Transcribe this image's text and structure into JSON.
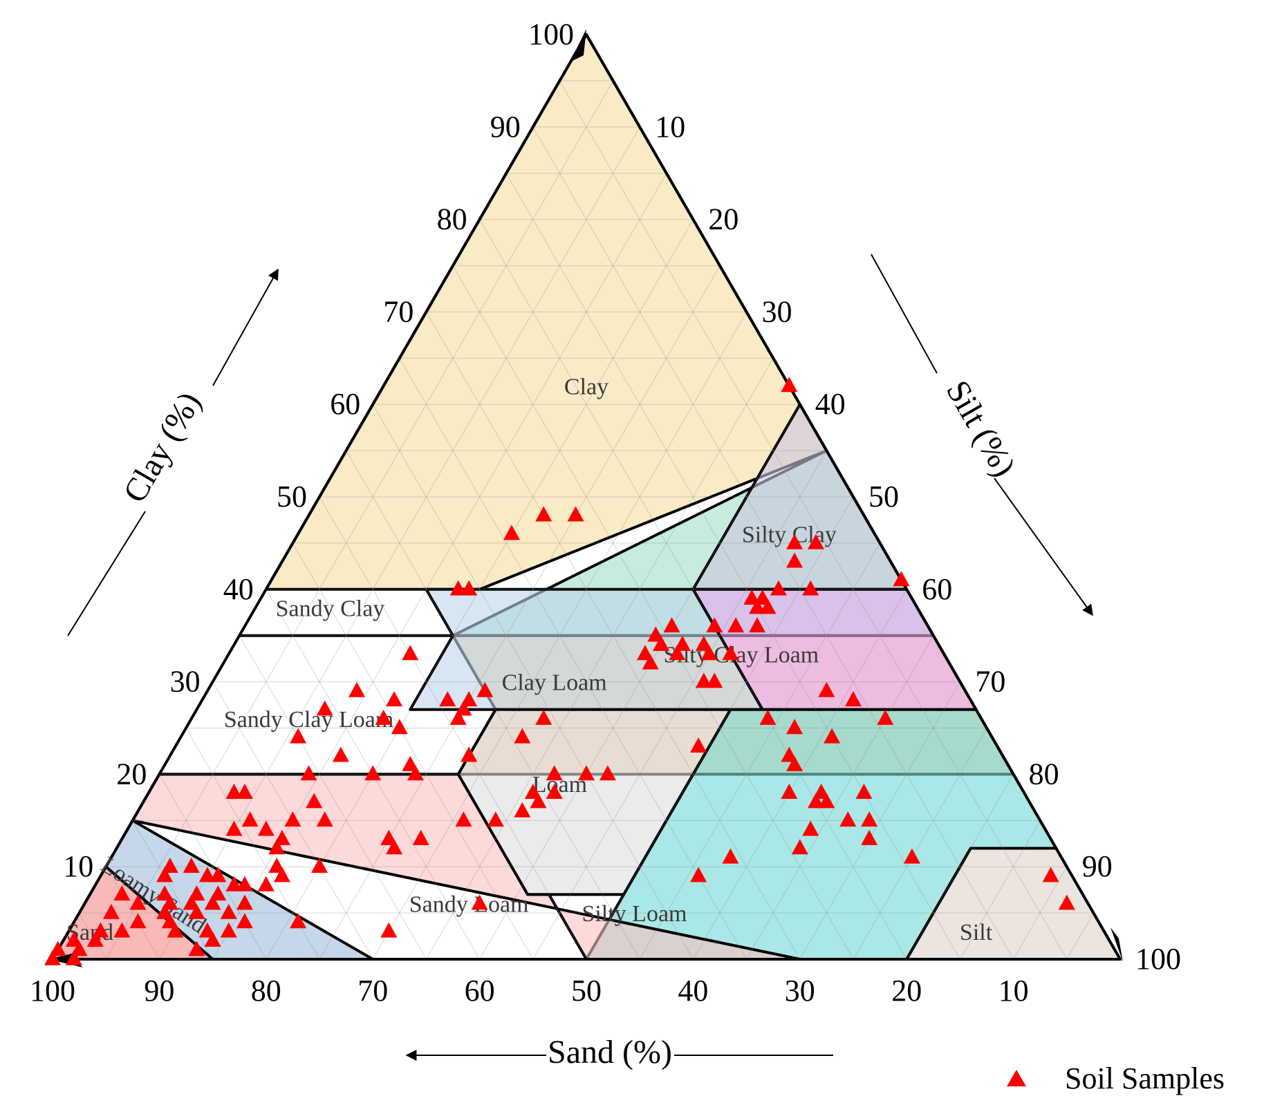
{
  "chart_data": {
    "type": "ternary-scatter",
    "axes": {
      "clay": {
        "label": "Clay (%)",
        "ticks": [
          10,
          20,
          30,
          40,
          50,
          60,
          70,
          80,
          90,
          100
        ]
      },
      "silt": {
        "label": "Silt (%)",
        "ticks": [
          10,
          20,
          30,
          40,
          50,
          60,
          70,
          80,
          90,
          100
        ]
      },
      "sand": {
        "label": "Sand (%)",
        "ticks": [
          100,
          90,
          80,
          70,
          60,
          50,
          40,
          30,
          20,
          10
        ]
      }
    },
    "grid": true,
    "regions": [
      {
        "name": "Clay",
        "label": "Clay",
        "color": "#f7dca0",
        "vertices": [
          [
            40,
            15
          ],
          [
            40,
            20
          ],
          [
            55,
            45
          ],
          [
            100,
            0
          ],
          [
            60,
            0
          ],
          [
            40,
            0
          ]
        ]
      },
      {
        "name": "Sandy Clay",
        "label": "Sandy Clay",
        "color": "#9fe0c6",
        "vertices": [
          [
            35,
            0
          ],
          [
            35,
            20
          ],
          [
            55,
            45
          ],
          [
            35,
            65
          ]
        ]
      },
      {
        "name": "Silty Clay",
        "label": "Silty Clay",
        "color": "#c9c6e0",
        "vertices": [
          [
            40,
            40
          ],
          [
            40,
            60
          ],
          [
            60,
            40
          ]
        ]
      },
      {
        "name": "Sandy Clay Loam",
        "label": "Sandy Clay Loam",
        "color": "#f2c396",
        "vertices": [
          [
            20,
            0
          ],
          [
            20,
            28
          ],
          [
            27,
            28
          ],
          [
            35,
            20
          ],
          [
            35,
            65
          ],
          [
            20,
            80
          ]
        ]
      },
      {
        "name": "Clay Loam",
        "label": "Clay Loam",
        "color": "#bcd5ea",
        "vertices": [
          [
            27,
            20
          ],
          [
            27,
            53
          ],
          [
            40,
            40
          ],
          [
            40,
            15
          ],
          [
            35,
            20
          ]
        ]
      },
      {
        "name": "Silty Clay Loam",
        "label": "Silty Clay Loam",
        "color": "#e6a6f4",
        "vertices": [
          [
            27,
            53
          ],
          [
            27,
            73
          ],
          [
            40,
            60
          ],
          [
            40,
            40
          ]
        ]
      },
      {
        "name": "Loam",
        "label": "Loam",
        "color": "#dddddd",
        "vertices": [
          [
            7,
            43
          ],
          [
            7,
            50
          ],
          [
            27,
            50
          ],
          [
            27,
            28
          ],
          [
            20,
            28
          ],
          [
            7,
            41
          ]
        ]
      },
      {
        "name": "Silty Loam",
        "label": "Silty Loam",
        "color": "#6fd8d6",
        "vertices": [
          [
            0,
            50
          ],
          [
            0,
            80
          ],
          [
            12,
            80
          ],
          [
            12,
            88
          ],
          [
            27,
            73
          ],
          [
            27,
            50
          ],
          [
            7,
            50
          ]
        ]
      },
      {
        "name": "Silt",
        "label": "Silt",
        "color": "#e0d2ca",
        "vertices": [
          [
            0,
            80
          ],
          [
            0,
            100
          ],
          [
            12,
            88
          ],
          [
            12,
            80
          ]
        ]
      },
      {
        "name": "Sandy Loam",
        "label": "Sandy Loam",
        "color": "#fbbfbf",
        "vertices": [
          [
            0,
            30
          ],
          [
            0,
            50
          ],
          [
            7,
            43
          ],
          [
            7,
            41
          ],
          [
            20,
            28
          ],
          [
            20,
            0
          ],
          [
            15,
            0
          ],
          [
            0,
            70
          ]
        ]
      },
      {
        "name": "Loamy Sand",
        "label": "Loamy Sand",
        "color": "#9fbcd8",
        "vertices": [
          [
            0,
            15
          ],
          [
            0,
            30
          ],
          [
            15,
            0
          ],
          [
            10,
            0
          ]
        ]
      },
      {
        "name": "Sand",
        "label": "Sand",
        "color": "#f58a8a",
        "vertices": [
          [
            0,
            0
          ],
          [
            0,
            15
          ],
          [
            10,
            0
          ]
        ]
      }
    ],
    "series": [
      {
        "name": "Soil Samples",
        "marker": "triangle",
        "color": "#ff0000",
        "points_clay_silt": [
          [
            62,
            38
          ],
          [
            48,
            22
          ],
          [
            48,
            25
          ],
          [
            46,
            20
          ],
          [
            45,
            47
          ],
          [
            45,
            49
          ],
          [
            43,
            48
          ],
          [
            40,
            48
          ],
          [
            40,
            51
          ],
          [
            41,
            59
          ],
          [
            39,
            46
          ],
          [
            39,
            47
          ],
          [
            38,
            47
          ],
          [
            38,
            48
          ],
          [
            40,
            18
          ],
          [
            40,
            19
          ],
          [
            36,
            40
          ],
          [
            34,
            42
          ],
          [
            35,
            39
          ],
          [
            34,
            40
          ],
          [
            33,
            42
          ],
          [
            35,
            39
          ],
          [
            36,
            44
          ],
          [
            34,
            44
          ],
          [
            33,
            45
          ],
          [
            32,
            40
          ],
          [
            33,
            39
          ],
          [
            34,
            40
          ],
          [
            36,
            46
          ],
          [
            33,
            47
          ],
          [
            36,
            48
          ],
          [
            30,
            46
          ],
          [
            30,
            47
          ],
          [
            29,
            58
          ],
          [
            26,
            65
          ],
          [
            28,
            61
          ],
          [
            33,
            17
          ],
          [
            29,
            14
          ],
          [
            28,
            18
          ],
          [
            28,
            23
          ],
          [
            27,
            12
          ],
          [
            26,
            18
          ],
          [
            25,
            20
          ],
          [
            28,
            25
          ],
          [
            29,
            26
          ],
          [
            26,
            25
          ],
          [
            27,
            25
          ],
          [
            24,
            11
          ],
          [
            22,
            16
          ],
          [
            21,
            23
          ],
          [
            22,
            28
          ],
          [
            26,
            33
          ],
          [
            24,
            32
          ],
          [
            20,
            37
          ],
          [
            20,
            40
          ],
          [
            20,
            42
          ],
          [
            18,
            36
          ],
          [
            17,
            37
          ],
          [
            18,
            38
          ],
          [
            23,
            49
          ],
          [
            26,
            54
          ],
          [
            25,
            57
          ],
          [
            24,
            61
          ],
          [
            22,
            58
          ],
          [
            21,
            59
          ],
          [
            18,
            60
          ],
          [
            18,
            63
          ],
          [
            18,
            67
          ],
          [
            17,
            63
          ],
          [
            17,
            64
          ],
          [
            14,
            64
          ],
          [
            15,
            67
          ],
          [
            15,
            69
          ],
          [
            20,
            14
          ],
          [
            18,
            8
          ],
          [
            18,
            9
          ],
          [
            15,
            11
          ],
          [
            14,
            10
          ],
          [
            14,
            13
          ],
          [
            13,
            15
          ],
          [
            17,
            16
          ],
          [
            20,
            20
          ],
          [
            20,
            24
          ],
          [
            22,
            28
          ],
          [
            15,
            34
          ],
          [
            16,
            36
          ],
          [
            15,
            31
          ],
          [
            15,
            15
          ],
          [
            15,
            18
          ],
          [
            13,
            25
          ],
          [
            13,
            28
          ],
          [
            12,
            15
          ],
          [
            10,
            20
          ],
          [
            10,
            8
          ],
          [
            12,
            26
          ],
          [
            13,
            25
          ],
          [
            13,
            70
          ],
          [
            9,
            56
          ],
          [
            11,
            58
          ],
          [
            12,
            64
          ],
          [
            11,
            75
          ],
          [
            6,
            92
          ],
          [
            9,
            89
          ],
          [
            4,
            21
          ],
          [
            3,
            30
          ],
          [
            6,
            37
          ],
          [
            6,
            8
          ],
          [
            7,
            10
          ],
          [
            7,
            12
          ],
          [
            6,
            10
          ],
          [
            5,
            14
          ],
          [
            9,
            10
          ],
          [
            8,
            13
          ],
          [
            8,
            14
          ],
          [
            10,
            16
          ],
          [
            8,
            16
          ],
          [
            9,
            17
          ],
          [
            6,
            15
          ],
          [
            4,
            16
          ],
          [
            3,
            13
          ],
          [
            3,
            15
          ],
          [
            2,
            14
          ],
          [
            1,
            13
          ],
          [
            10,
            6
          ],
          [
            9,
            6
          ],
          [
            7,
            7
          ],
          [
            5,
            8
          ],
          [
            4,
            6
          ],
          [
            3,
            5
          ],
          [
            2,
            3
          ],
          [
            1,
            2
          ],
          [
            0,
            2
          ],
          [
            2,
            1
          ],
          [
            1,
            0
          ],
          [
            0,
            0
          ],
          [
            7,
            3
          ],
          [
            6,
            5
          ],
          [
            5,
            3
          ],
          [
            3,
            3
          ],
          [
            9,
            11
          ],
          [
            3,
            10
          ],
          [
            4,
            9
          ],
          [
            5,
            11
          ],
          [
            6,
            12
          ]
        ]
      }
    ],
    "legend": {
      "position": "bottom-right",
      "label": "Soil Samples"
    }
  }
}
